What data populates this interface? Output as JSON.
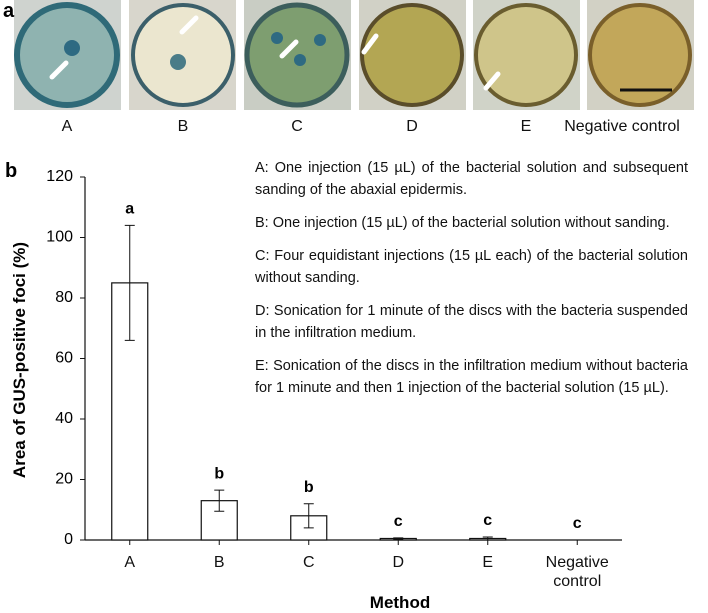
{
  "panel_a": {
    "label": "a",
    "captions": [
      "A",
      "B",
      "C",
      "D",
      "E",
      "Negative control"
    ]
  },
  "chart_data": {
    "type": "bar",
    "panel_label": "b",
    "y_label": "Area of GUS-positive foci  (%)",
    "x_label": "Method",
    "categories": [
      "A",
      "B",
      "C",
      "D",
      "E",
      "Negative control"
    ],
    "values": [
      85,
      13,
      8,
      0.5,
      0.5,
      0
    ],
    "errors": [
      19,
      3.5,
      4,
      0.2,
      0.5,
      0
    ],
    "significance_letters": [
      "a",
      "b",
      "b",
      "c",
      "c",
      "c"
    ],
    "color": "#ffffff",
    "ylim": [
      0,
      120
    ],
    "yticks": [
      0,
      20,
      40,
      60,
      80,
      100,
      120
    ],
    "legend_notes": [
      "A: One injection (15 µL) of the bacterial solution and subsequent sanding of the abaxial epidermis.",
      "B: One injection (15 µL) of the bacterial solution without sanding.",
      "C: Four equidistant injections (15 µL each) of the bacterial solution without sanding.",
      "D: Sonication for 1 minute of the discs with the bacteria suspended in the infiltration medium.",
      "E: Sonication of the discs in the infiltration medium without bacteria for 1 minute and then 1 injection of the bacterial solution (15 µL)."
    ]
  }
}
